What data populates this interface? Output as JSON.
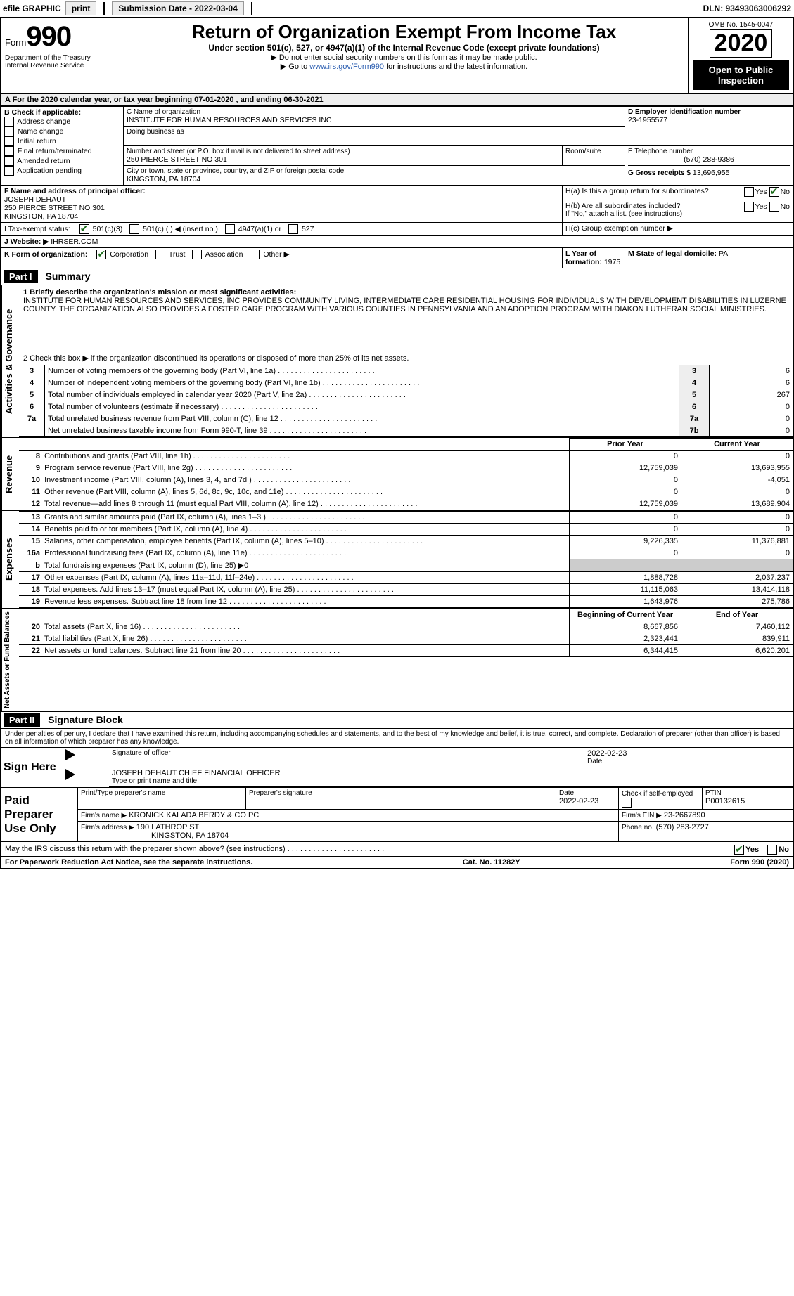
{
  "topbar": {
    "efile_label": "efile GRAPHIC",
    "print_btn": "print",
    "submission_label": "Submission Date - 2022-03-04",
    "dln": "DLN: 93493063006292"
  },
  "header": {
    "form_word": "Form",
    "form_number": "990",
    "dept": "Department of the Treasury",
    "irs": "Internal Revenue Service",
    "title": "Return of Organization Exempt From Income Tax",
    "subtitle": "Under section 501(c), 527, or 4947(a)(1) of the Internal Revenue Code (except private foundations)",
    "note1": "▶ Do not enter social security numbers on this form as it may be made public.",
    "note2_pre": "▶ Go to ",
    "note2_link": "www.irs.gov/Form990",
    "note2_post": " for instructions and the latest information.",
    "omb": "OMB No. 1545-0047",
    "year": "2020",
    "open": "Open to Public Inspection"
  },
  "period": {
    "line": "A For the 2020 calendar year, or tax year beginning 07-01-2020     , and ending 06-30-2021"
  },
  "boxB": {
    "title": "B Check if applicable:",
    "items": [
      "Address change",
      "Name change",
      "Initial return",
      "Final return/terminated",
      "Amended return",
      "Application pending"
    ]
  },
  "boxC": {
    "label_name": "C Name of organization",
    "org_name": "INSTITUTE FOR HUMAN RESOURCES AND SERVICES INC",
    "dba_label": "Doing business as",
    "addr_label": "Number and street (or P.O. box if mail is not delivered to street address)",
    "room_label": "Room/suite",
    "street": "250 PIERCE STREET NO 301",
    "city_label": "City or town, state or province, country, and ZIP or foreign postal code",
    "city": "KINGSTON, PA  18704"
  },
  "boxD": {
    "label": "D Employer identification number",
    "value": "23-1955577"
  },
  "boxE": {
    "label": "E Telephone number",
    "value": "(570) 288-9386"
  },
  "boxG": {
    "label": "G Gross receipts $",
    "value": "13,696,955"
  },
  "boxF": {
    "label": "F  Name and address of principal officer:",
    "name": "JOSEPH DEHAUT",
    "street": "250 PIERCE STREET NO 301",
    "city": "KINGSTON, PA  18704"
  },
  "boxH": {
    "a_label": "H(a)  Is this a group return for subordinates?",
    "b_label": "H(b)  Are all subordinates included?",
    "b_note": "If \"No,\" attach a list. (see instructions)",
    "c_label": "H(c)  Group exemption number ▶",
    "yes": "Yes",
    "no": "No"
  },
  "taxI": {
    "label": "I   Tax-exempt status:",
    "opts": [
      "501(c)(3)",
      "501(c) (  )  ◀ (insert no.)",
      "4947(a)(1) or",
      "527"
    ]
  },
  "boxJ": {
    "label": "J   Website: ▶",
    "value": "IHRSER.COM"
  },
  "boxK": {
    "label": "K Form of organization:",
    "opts": [
      "Corporation",
      "Trust",
      "Association",
      "Other ▶"
    ]
  },
  "boxL": {
    "label": "L Year of formation:",
    "value": "1975"
  },
  "boxM": {
    "label": "M State of legal domicile:",
    "value": "PA"
  },
  "part1": {
    "title": "Part I",
    "heading": "Summary",
    "line1_label": "1  Briefly describe the organization's mission or most significant activities:",
    "mission": "INSTITUTE FOR HUMAN RESOURCES AND SERVICES, INC PROVIDES COMMUNITY LIVING, INTERMEDIATE CARE RESIDENTIAL HOUSING FOR INDIVIDUALS WITH DEVELOPMENT DISABILITIES IN LUZERNE COUNTY. THE ORGANIZATION ALSO PROVIDES A FOSTER CARE PROGRAM WITH VARIOUS COUNTIES IN PENNSYLVANIA AND AN ADOPTION PROGRAM WITH DIAKON LUTHERAN SOCIAL MINISTRIES.",
    "line2": "2  Check this box ▶      if the organization discontinued its operations or disposed of more than 25% of its net assets.",
    "rows_gov": [
      {
        "n": "3",
        "d": "Number of voting members of the governing body (Part VI, line 1a)",
        "box": "3",
        "v": "6"
      },
      {
        "n": "4",
        "d": "Number of independent voting members of the governing body (Part VI, line 1b)",
        "box": "4",
        "v": "6"
      },
      {
        "n": "5",
        "d": "Total number of individuals employed in calendar year 2020 (Part V, line 2a)",
        "box": "5",
        "v": "267"
      },
      {
        "n": "6",
        "d": "Total number of volunteers (estimate if necessary)",
        "box": "6",
        "v": "0"
      },
      {
        "n": "7a",
        "d": "Total unrelated business revenue from Part VIII, column (C), line 12",
        "box": "7a",
        "v": "0"
      },
      {
        "n": "",
        "d": "Net unrelated business taxable income from Form 990-T, line 39",
        "box": "7b",
        "v": "0"
      }
    ],
    "col_prior": "Prior Year",
    "col_current": "Current Year",
    "rows_rev": [
      {
        "n": "8",
        "d": "Contributions and grants (Part VIII, line 1h)",
        "p": "0",
        "c": "0"
      },
      {
        "n": "9",
        "d": "Program service revenue (Part VIII, line 2g)",
        "p": "12,759,039",
        "c": "13,693,955"
      },
      {
        "n": "10",
        "d": "Investment income (Part VIII, column (A), lines 3, 4, and 7d )",
        "p": "0",
        "c": "-4,051"
      },
      {
        "n": "11",
        "d": "Other revenue (Part VIII, column (A), lines 5, 6d, 8c, 9c, 10c, and 11e)",
        "p": "0",
        "c": "0"
      },
      {
        "n": "12",
        "d": "Total revenue—add lines 8 through 11 (must equal Part VIII, column (A), line 12)",
        "p": "12,759,039",
        "c": "13,689,904"
      }
    ],
    "rows_exp": [
      {
        "n": "13",
        "d": "Grants and similar amounts paid (Part IX, column (A), lines 1–3 )",
        "p": "0",
        "c": "0"
      },
      {
        "n": "14",
        "d": "Benefits paid to or for members (Part IX, column (A), line 4)",
        "p": "0",
        "c": "0"
      },
      {
        "n": "15",
        "d": "Salaries, other compensation, employee benefits (Part IX, column (A), lines 5–10)",
        "p": "9,226,335",
        "c": "11,376,881"
      },
      {
        "n": "16a",
        "d": "Professional fundraising fees (Part IX, column (A), line 11e)",
        "p": "0",
        "c": "0"
      },
      {
        "n": "b",
        "d": "Total fundraising expenses (Part IX, column (D), line 25) ▶0",
        "p": "",
        "c": ""
      },
      {
        "n": "17",
        "d": "Other expenses (Part IX, column (A), lines 11a–11d, 11f–24e)",
        "p": "1,888,728",
        "c": "2,037,237"
      },
      {
        "n": "18",
        "d": "Total expenses. Add lines 13–17 (must equal Part IX, column (A), line 25)",
        "p": "11,115,063",
        "c": "13,414,118"
      },
      {
        "n": "19",
        "d": "Revenue less expenses. Subtract line 18 from line 12",
        "p": "1,643,976",
        "c": "275,786"
      }
    ],
    "col_begin": "Beginning of Current Year",
    "col_end": "End of Year",
    "rows_net": [
      {
        "n": "20",
        "d": "Total assets (Part X, line 16)",
        "p": "8,667,856",
        "c": "7,460,112"
      },
      {
        "n": "21",
        "d": "Total liabilities (Part X, line 26)",
        "p": "2,323,441",
        "c": "839,911"
      },
      {
        "n": "22",
        "d": "Net assets or fund balances. Subtract line 21 from line 20",
        "p": "6,344,415",
        "c": "6,620,201"
      }
    ],
    "vlabels": {
      "gov": "Activities & Governance",
      "rev": "Revenue",
      "exp": "Expenses",
      "net": "Net Assets or Fund Balances"
    }
  },
  "part2": {
    "title": "Part II",
    "heading": "Signature Block",
    "penalty": "Under penalties of perjury, I declare that I have examined this return, including accompanying schedules and statements, and to the best of my knowledge and belief, it is true, correct, and complete. Declaration of preparer (other than officer) is based on all information of which preparer has any knowledge.",
    "sign_here": "Sign Here",
    "sig_officer": "Signature of officer",
    "sig_date": "2022-02-23",
    "date_lbl": "Date",
    "officer_name": "JOSEPH DEHAUT  CHIEF FINANCIAL OFFICER",
    "type_name": "Type or print name and title",
    "paid": "Paid Preparer Use Only",
    "prep_name_lbl": "Print/Type preparer's name",
    "prep_sig_lbl": "Preparer's signature",
    "prep_date_lbl": "Date",
    "prep_date": "2022-02-23",
    "self_emp": "Check        if self-employed",
    "ptin_lbl": "PTIN",
    "ptin": "P00132615",
    "firm_name_lbl": "Firm's name      ▶",
    "firm_name": "KRONICK KALADA BERDY & CO PC",
    "firm_ein_lbl": "Firm's EIN ▶",
    "firm_ein": "23-2667890",
    "firm_addr_lbl": "Firm's address ▶",
    "firm_addr": "190 LATHROP ST",
    "firm_city": "KINGSTON, PA  18704",
    "phone_lbl": "Phone no.",
    "phone": "(570) 283-2727",
    "may_discuss": "May the IRS discuss this return with the preparer shown above? (see instructions)",
    "yes": "Yes",
    "no": "No"
  },
  "footer": {
    "left": "For Paperwork Reduction Act Notice, see the separate instructions.",
    "mid": "Cat. No. 11282Y",
    "right": "Form 990 (2020)"
  }
}
